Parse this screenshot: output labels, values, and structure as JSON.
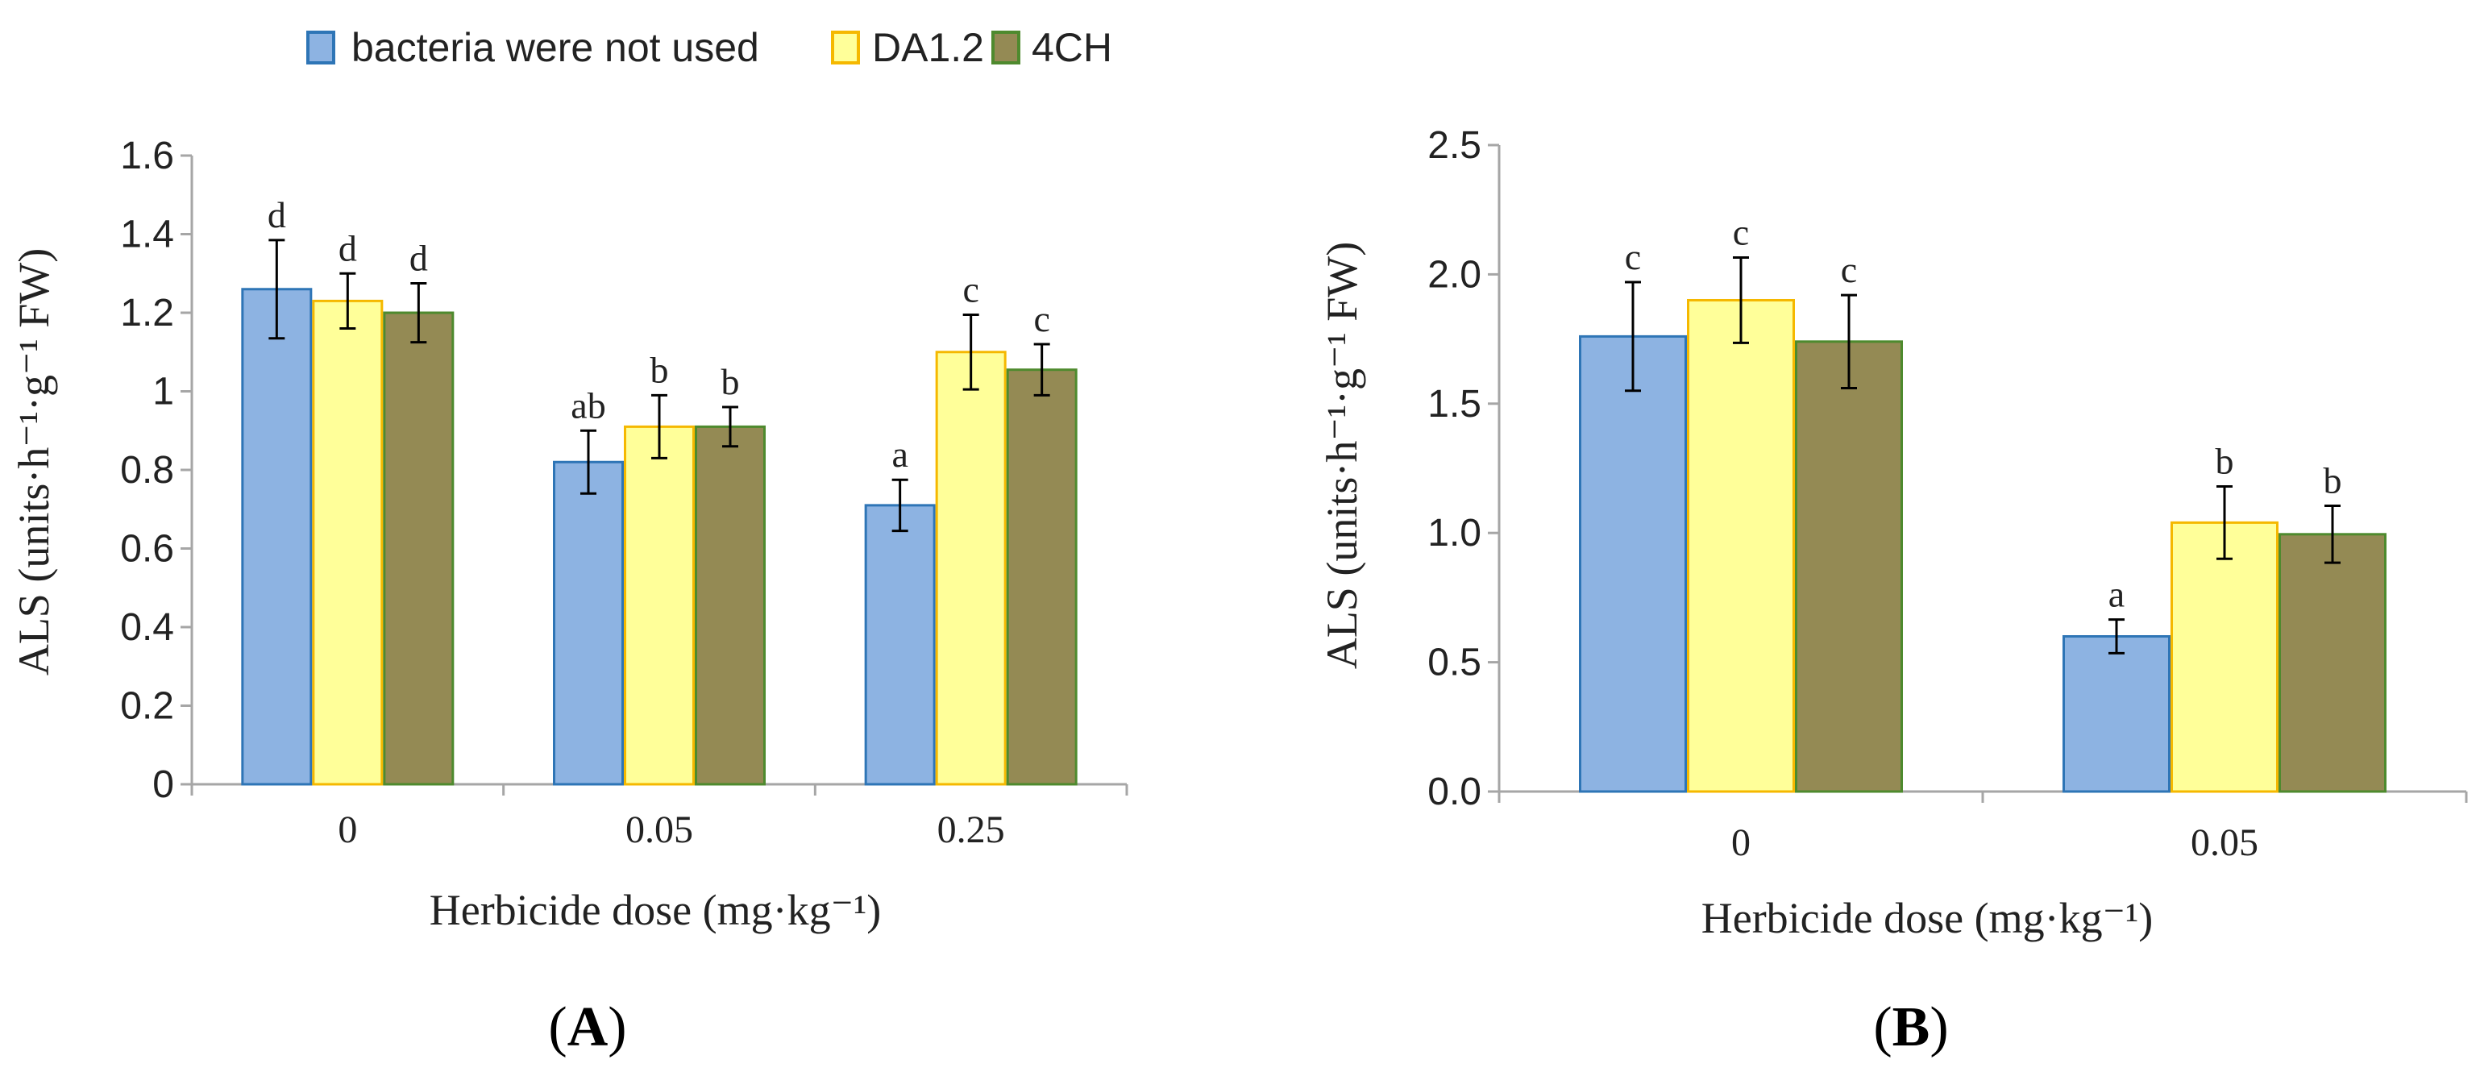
{
  "legend": [
    {
      "label": "bacteria were not used",
      "fill": "#8db3e2",
      "stroke": "#2e75b6"
    },
    {
      "label": "DA1.2",
      "fill": "#ffff99",
      "stroke": "#f5b800"
    },
    {
      "label": "4CH",
      "fill": "#948a54",
      "stroke": "#4e8a2e"
    }
  ],
  "chart_data": [
    {
      "type": "bar",
      "panel_label": "A",
      "xlabel": "Herbicide dose (mg·kg⁻¹)",
      "ylabel": "ALS (units·h⁻¹·g⁻¹ FW)",
      "categories": [
        "0",
        "0.05",
        "0.25"
      ],
      "ylim": [
        0,
        1.6
      ],
      "yticks": [
        0,
        0.2,
        0.4,
        0.6,
        0.8,
        1,
        1.2,
        1.4,
        1.6
      ],
      "ytick_labels": [
        "0",
        "0.2",
        "0.4",
        "0.6",
        "0.8",
        "1",
        "1.2",
        "1.4",
        "1.6"
      ],
      "series": [
        {
          "name": "bacteria were not used",
          "values": [
            1.26,
            0.82,
            0.71
          ],
          "errors": [
            0.125,
            0.08,
            0.065
          ],
          "labels": [
            "d",
            "ab",
            "a"
          ]
        },
        {
          "name": "DA1.2",
          "values": [
            1.23,
            0.91,
            1.1
          ],
          "errors": [
            0.07,
            0.08,
            0.095
          ],
          "labels": [
            "d",
            "b",
            "c"
          ]
        },
        {
          "name": "4CH",
          "values": [
            1.2,
            0.91,
            1.055
          ],
          "errors": [
            0.075,
            0.05,
            0.065
          ],
          "labels": [
            "d",
            "b",
            "c"
          ]
        }
      ]
    },
    {
      "type": "bar",
      "panel_label": "B",
      "xlabel": "Herbicide dose (mg·kg⁻¹)",
      "ylabel": "ALS (units·h⁻¹·g⁻¹ FW)",
      "categories": [
        "0",
        "0.05"
      ],
      "ylim": [
        0,
        2.5
      ],
      "yticks": [
        0,
        0.5,
        1.0,
        1.5,
        2.0,
        2.5
      ],
      "ytick_labels": [
        "0.0",
        "0.5",
        "1.0",
        "1.5",
        "2.0",
        "2.5"
      ],
      "series": [
        {
          "name": "bacteria were not used",
          "values": [
            1.76,
            0.6
          ],
          "errors": [
            0.21,
            0.065
          ],
          "labels": [
            "c",
            "a"
          ]
        },
        {
          "name": "DA1.2",
          "values": [
            1.9,
            1.04
          ],
          "errors": [
            0.165,
            0.14
          ],
          "labels": [
            "c",
            "b"
          ]
        },
        {
          "name": "4CH",
          "values": [
            1.74,
            0.995
          ],
          "errors": [
            0.18,
            0.11
          ],
          "labels": [
            "c",
            "b"
          ]
        }
      ]
    }
  ]
}
